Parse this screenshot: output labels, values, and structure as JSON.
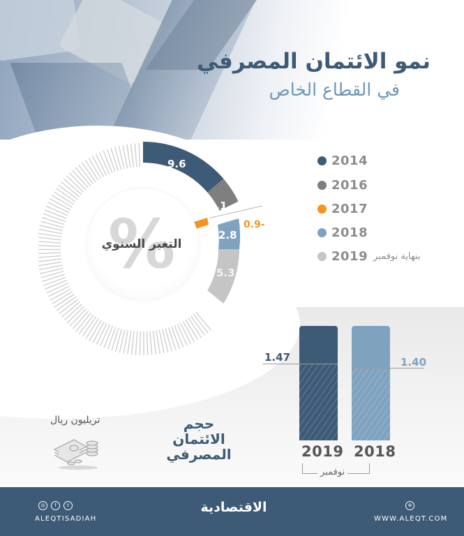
{
  "header": {
    "title": "نمو الائتمان المصرفي",
    "subtitle": "في القطاع الخاص"
  },
  "donut": {
    "center_label": "التغير السنوي",
    "center_symbol": "%",
    "segments": [
      {
        "year": "2014",
        "label": "9.6"
      },
      {
        "year": "2016",
        "label": "2.1"
      },
      {
        "year": "2017",
        "label": "0.9-"
      },
      {
        "year": "2018",
        "label": "2.8"
      },
      {
        "year": "2019",
        "label": "5.3"
      }
    ]
  },
  "legend": {
    "items": [
      {
        "year": "2014",
        "color": "#3d5a76"
      },
      {
        "year": "2016",
        "color": "#7f7f7f"
      },
      {
        "year": "2017",
        "color": "#f7931e"
      },
      {
        "year": "2018",
        "color": "#7fa2bf"
      },
      {
        "year": "2019",
        "color": "#c5c5c5",
        "note": "بنهاية نوفمبر"
      }
    ]
  },
  "volume": {
    "title_line1": "حجم",
    "title_line2": "الائتمان المصرفي",
    "unit": "تريليون ريال",
    "month_label": "نوفمبر",
    "bars": [
      {
        "year": "2019",
        "value": "1.47",
        "color": "#3d5a76"
      },
      {
        "year": "2018",
        "value": "1.40",
        "color": "#7fa2bf"
      }
    ]
  },
  "footer": {
    "handle": "ALEQTISADIAH",
    "logo": "الاقتصادية",
    "website": "WWW.ALEQT.COM",
    "social_icons": [
      "instagram-icon",
      "facebook-icon",
      "twitter-icon"
    ]
  },
  "chart_data": [
    {
      "type": "pie",
      "title": "التغير السنوي (%)",
      "categories": [
        "2014",
        "2016",
        "2017",
        "2018",
        "2019 (بنهاية نوفمبر)"
      ],
      "values": [
        9.6,
        2.1,
        -0.9,
        2.8,
        5.3
      ],
      "colors": [
        "#3d5a76",
        "#7f7f7f",
        "#f7931e",
        "#7fa2bf",
        "#c5c5c5"
      ],
      "legend_position": "right"
    },
    {
      "type": "bar",
      "title": "حجم الائتمان المصرفي",
      "ylabel": "تريليون ريال",
      "xlabel": "نوفمبر",
      "categories": [
        "2019",
        "2018"
      ],
      "values": [
        1.47,
        1.4
      ],
      "colors": [
        "#3d5a76",
        "#7fa2bf"
      ]
    }
  ]
}
